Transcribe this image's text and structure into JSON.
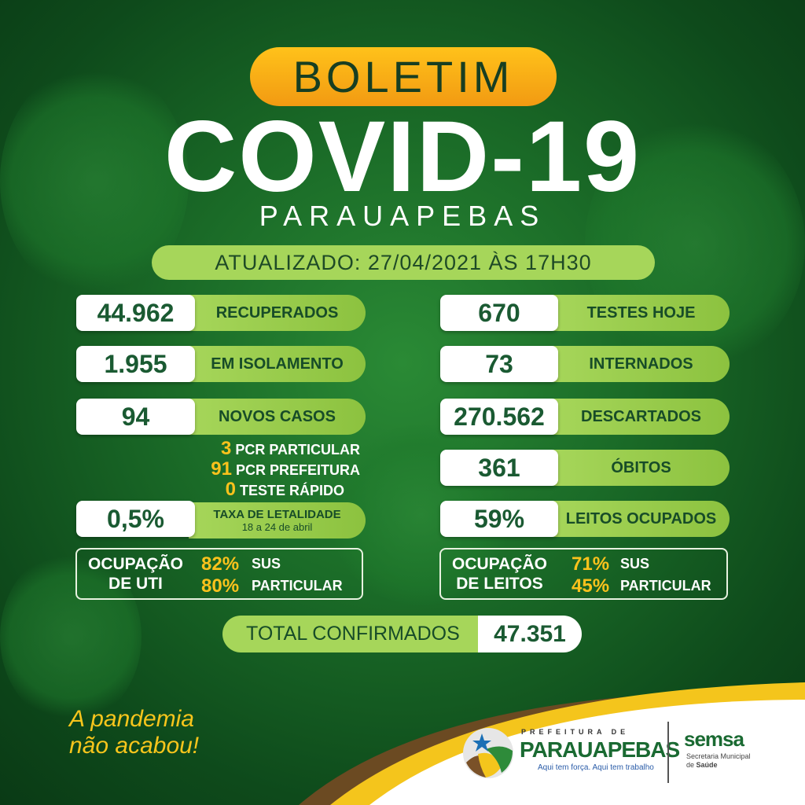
{
  "header": {
    "badge": "BOLETIM",
    "title": "COVID-19",
    "city": "PARAUAPEBAS",
    "updated": "ATUALIZADO: 27/04/2021 ÀS 17H30"
  },
  "left": [
    {
      "value": "44.962",
      "label": "RECUPERADOS"
    },
    {
      "value": "1.955",
      "label": "EM ISOLAMENTO"
    },
    {
      "value": "94",
      "label": "NOVOS CASOS"
    }
  ],
  "new_cases_breakdown": [
    {
      "value": "3",
      "label": "PCR PARTICULAR"
    },
    {
      "value": "91",
      "label": "PCR PREFEITURA"
    },
    {
      "value": "0",
      "label": "TESTE RÁPIDO"
    }
  ],
  "lethality": {
    "value": "0,5%",
    "label": "TAXA DE LETALIDADE",
    "period": "18 a 24 de abril"
  },
  "right": [
    {
      "value": "670",
      "label": "TESTES HOJE"
    },
    {
      "value": "73",
      "label": "INTERNADOS"
    },
    {
      "value": "270.562",
      "label": "DESCARTADOS"
    },
    {
      "value": "361",
      "label": "ÓBITOS"
    },
    {
      "value": "59%",
      "label": "LEITOS OCUPADOS"
    }
  ],
  "uti": {
    "title1": "OCUPAÇÃO",
    "title2": "DE UTI",
    "sus": "82%",
    "sus_label": "SUS",
    "part": "80%",
    "part_label": "PARTICULAR"
  },
  "leitos": {
    "title1": "OCUPAÇÃO",
    "title2": "DE LEITOS",
    "sus": "71%",
    "sus_label": "SUS",
    "part": "45%",
    "part_label": "PARTICULAR"
  },
  "total": {
    "label": "TOTAL CONFIRMADOS",
    "value": "47.351"
  },
  "slogan": {
    "line1": "A pandemia",
    "line2": "não acabou!"
  },
  "footer": {
    "pref_top": "PREFEITURA DE",
    "pref_name": "PARAUAPEBAS",
    "pref_tagline": "Aqui tem força. Aqui tem trabalho",
    "semsa": "semsa",
    "semsa_sub1": "Secretaria Municipal",
    "semsa_sub2a": "de ",
    "semsa_sub2b": "Saúde"
  },
  "colors": {
    "bg": "#1a6a27",
    "accent": "#a6d65a",
    "orange": "#f7a81b",
    "yellow": "#fbc21c",
    "dark_green": "#1a5a32"
  }
}
